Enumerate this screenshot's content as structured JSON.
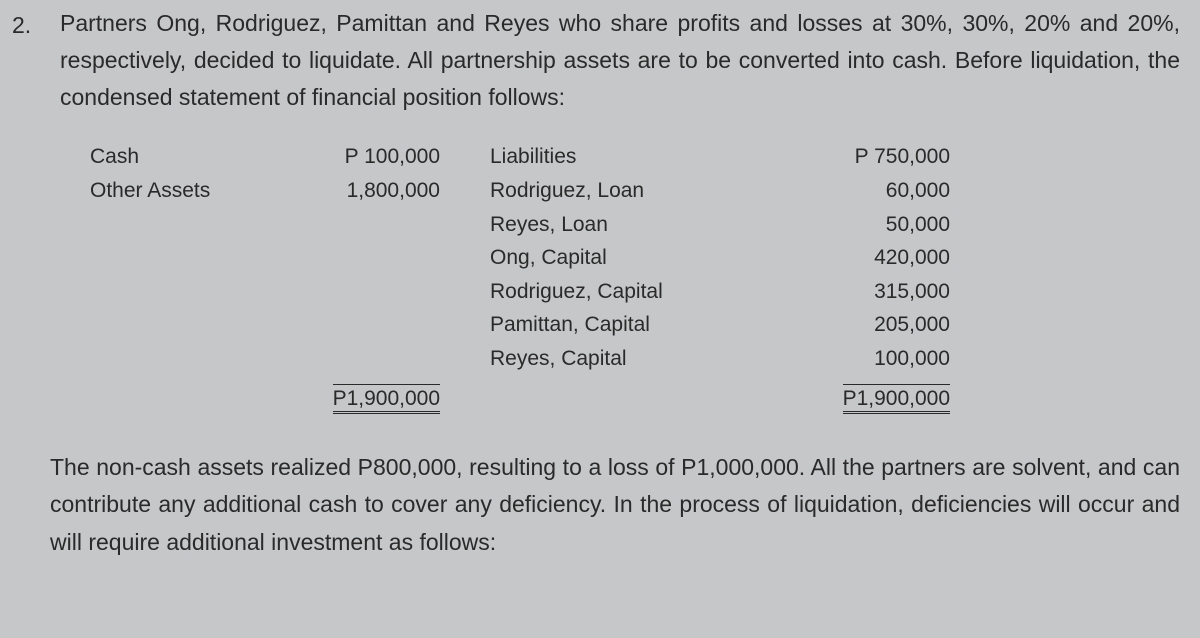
{
  "problem_number": "2.",
  "intro_paragraph": "Partners Ong, Rodriguez, Pamittan and Reyes who share profits and losses at 30%, 30%, 20% and 20%, respectively, decided to liquidate. All partnership assets are to be converted into cash. Before liquidation, the condensed statement of financial position follows:",
  "balance_sheet": {
    "left_items": [
      {
        "label": "Cash",
        "amount": "P   100,000"
      },
      {
        "label": "Other Assets",
        "amount": "1,800,000"
      }
    ],
    "left_total": "P1,900,000",
    "right_items": [
      {
        "label": "Liabilities",
        "amount": "P   750,000"
      },
      {
        "label": "Rodriguez, Loan",
        "amount": "60,000"
      },
      {
        "label": "Reyes, Loan",
        "amount": "50,000"
      },
      {
        "label": "Ong, Capital",
        "amount": "420,000"
      },
      {
        "label": "Rodriguez, Capital",
        "amount": "315,000"
      },
      {
        "label": "Pamittan, Capital",
        "amount": "205,000"
      },
      {
        "label": "Reyes, Capital",
        "amount": "100,000"
      }
    ],
    "right_total": "P1,900,000"
  },
  "closing_paragraph": "The non-cash assets realized P800,000, resulting to a loss of P1,000,000. All the partners are solvent, and can contribute any additional cash to cover any deficiency. In the process of liquidation, deficiencies will occur and will require additional investment as follows:",
  "styling": {
    "background_color": "#c5c7c9",
    "text_color": "#2a2a2a",
    "body_fontsize": 23,
    "table_fontsize": 21,
    "font_family": "Segoe UI"
  }
}
